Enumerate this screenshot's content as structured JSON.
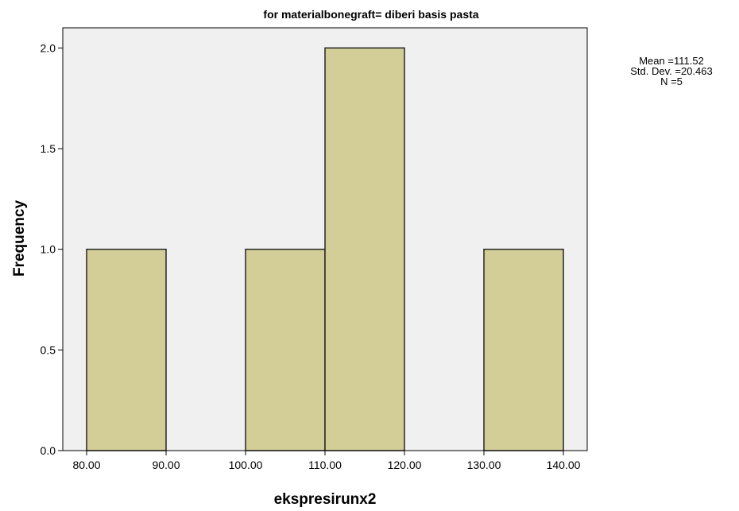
{
  "chart_data": {
    "type": "bar",
    "title": "for materialbonegraft= diberi basis pasta",
    "xlabel": "ekspresirunx2",
    "ylabel": "Frequency",
    "x_ticks": [
      "80.00",
      "90.00",
      "100.00",
      "110.00",
      "120.00",
      "130.00",
      "140.00"
    ],
    "y_ticks": [
      "0.0",
      "0.5",
      "1.0",
      "1.5",
      "2.0"
    ],
    "xlim": [
      77,
      143
    ],
    "ylim": [
      0,
      2.1
    ],
    "bins": [
      {
        "start": 80,
        "end": 90,
        "value": 1
      },
      {
        "start": 100,
        "end": 110,
        "value": 1
      },
      {
        "start": 110,
        "end": 120,
        "value": 2
      },
      {
        "start": 130,
        "end": 140,
        "value": 1
      }
    ],
    "grid": false,
    "colors": {
      "bar_fill": "#d3ce97",
      "bar_stroke": "#262626",
      "plot_background": "#f0f0f0"
    }
  },
  "stats": {
    "mean": "Mean =111.52",
    "std_dev": "Std. Dev. =20.463",
    "n": "N =5"
  }
}
